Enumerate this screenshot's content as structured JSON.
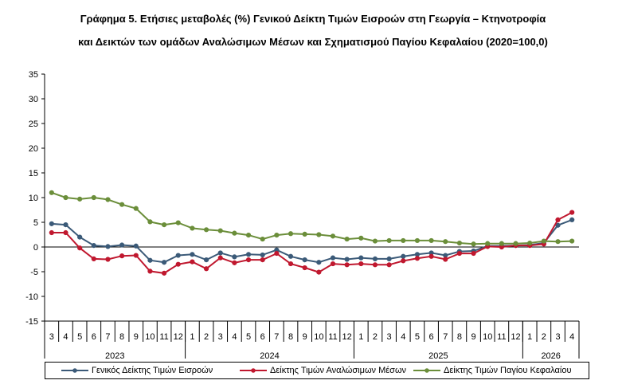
{
  "title_line1": "Γράφημα 5. Ετήσιες μεταβολές (%) Γενικού Δείκτη Τιμών Εισροών στη Γεωργία – Κτηνοτροφία",
  "title_line2": "και Δεικτών των ομάδων Αναλώσιμων Μέσων και Σχηματισμού Παγίου Κεφαλαίου (2020=100,0)",
  "chart_data": {
    "type": "line",
    "title": "Γράφημα 5. Ετήσιες μεταβολές (%) Γενικού Δείκτη Τιμών Εισροών στη Γεωργία – Κτηνοτροφία και Δεικτών των ομάδων Αναλώσιμων Μέσων και Σχηματισμού Παγίου Κεφαλαίου (2020=100,0)",
    "xlabel": "",
    "ylabel": "",
    "ylim": [
      -15,
      35
    ],
    "yticks": [
      35,
      30,
      25,
      20,
      15,
      10,
      5,
      0,
      -5,
      -10,
      -15
    ],
    "grid": false,
    "legend_position": "bottom",
    "x": [
      "3",
      "4",
      "5",
      "6",
      "7",
      "8",
      "9",
      "10",
      "11",
      "12",
      "1",
      "2",
      "3",
      "4",
      "5",
      "6",
      "7",
      "8",
      "9",
      "10",
      "11",
      "12",
      "1",
      "2",
      "3",
      "4",
      "5",
      "6",
      "7",
      "8",
      "9",
      "10",
      "11",
      "12",
      "1",
      "2",
      "3",
      "4"
    ],
    "year_groups": [
      {
        "label": "2023",
        "count": 10
      },
      {
        "label": "2024",
        "count": 12
      },
      {
        "label": "2025",
        "count": 12
      },
      {
        "label": "2026",
        "count": 4
      }
    ],
    "series": [
      {
        "name": "Γενικός Δείκτης Τιμών Εισροών",
        "color": "#3b5a78",
        "values": [
          4.7,
          4.5,
          2.0,
          0.3,
          0.1,
          0.4,
          0.2,
          -2.7,
          -3.1,
          -1.7,
          -1.5,
          -2.6,
          -1.2,
          -2.0,
          -1.5,
          -1.6,
          -0.6,
          -1.9,
          -2.6,
          -3.1,
          -2.2,
          -2.5,
          -2.2,
          -2.4,
          -2.4,
          -1.9,
          -1.5,
          -1.2,
          -1.7,
          -0.9,
          -0.8,
          0.2,
          0.2,
          0.3,
          0.4,
          0.8,
          4.4,
          5.5
        ]
      },
      {
        "name": "Δείκτης Τιμών Αναλώσιμων Μέσων",
        "color": "#c0182f",
        "values": [
          2.9,
          2.9,
          -0.2,
          -2.4,
          -2.5,
          -1.8,
          -1.7,
          -4.9,
          -5.3,
          -3.5,
          -3.0,
          -4.4,
          -2.2,
          -3.2,
          -2.6,
          -2.6,
          -1.3,
          -3.4,
          -4.2,
          -5.1,
          -3.4,
          -3.6,
          -3.4,
          -3.6,
          -3.6,
          -2.8,
          -2.3,
          -1.9,
          -2.5,
          -1.3,
          -1.3,
          0.1,
          0.0,
          0.3,
          0.3,
          0.6,
          5.5,
          7.0
        ]
      },
      {
        "name": "Δείκτης Τιμών Παγίου Κεφαλαίου",
        "color": "#6b8e3a",
        "values": [
          11.0,
          10.0,
          9.7,
          10.0,
          9.6,
          8.6,
          7.8,
          5.1,
          4.5,
          4.9,
          3.8,
          3.5,
          3.3,
          2.8,
          2.4,
          1.6,
          2.4,
          2.7,
          2.6,
          2.5,
          2.2,
          1.6,
          1.8,
          1.2,
          1.3,
          1.3,
          1.3,
          1.3,
          1.1,
          0.8,
          0.6,
          0.7,
          0.7,
          0.7,
          0.8,
          1.2,
          1.1,
          1.2
        ]
      }
    ]
  }
}
